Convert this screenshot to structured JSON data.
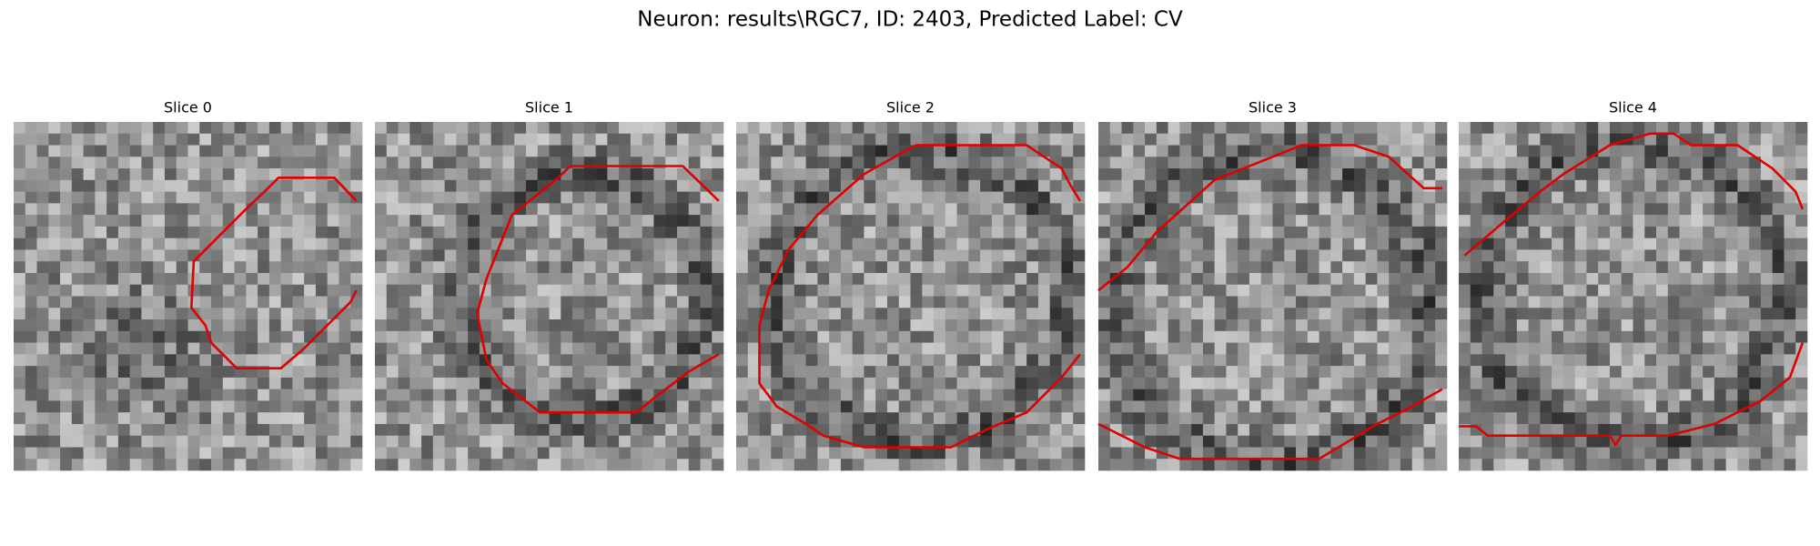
{
  "title": "Neuron: results\\RGC7, ID: 2403, Predicted Label: CV",
  "panels": [
    {
      "title": "Slice 0"
    },
    {
      "title": "Slice 1"
    },
    {
      "title": "Slice 2"
    },
    {
      "title": "Slice 3"
    },
    {
      "title": "Slice 4"
    }
  ]
}
